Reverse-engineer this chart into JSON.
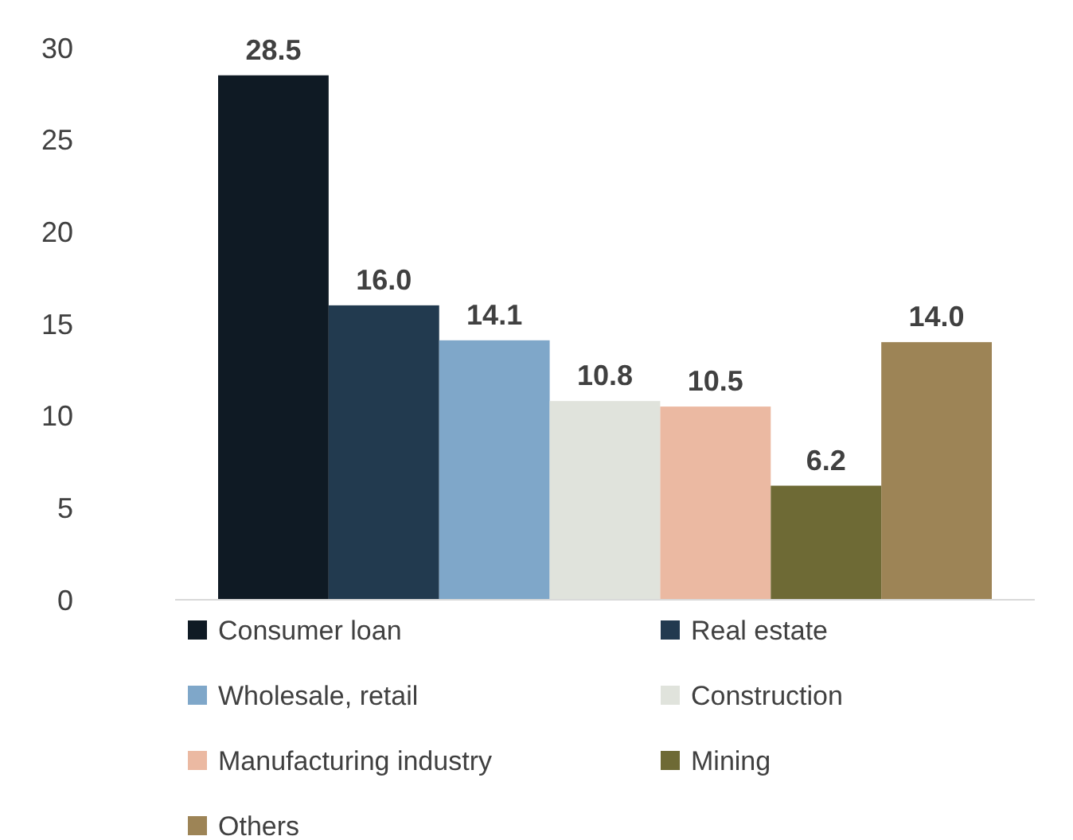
{
  "chart_data": {
    "type": "bar",
    "categories": [
      null
    ],
    "series": [
      {
        "name": "Consumer loan",
        "color": "#0f1a24",
        "values": [
          28.5
        ],
        "value_labels": [
          "28.5"
        ]
      },
      {
        "name": "Real estate",
        "color": "#223a4f",
        "values": [
          16.0
        ],
        "value_labels": [
          "16.0"
        ]
      },
      {
        "name": "Wholesale, retail",
        "color": "#7fa7c9",
        "values": [
          14.1
        ],
        "value_labels": [
          "14.1"
        ]
      },
      {
        "name": "Construction",
        "color": "#e0e3dc",
        "values": [
          10.8
        ],
        "value_labels": [
          "10.8"
        ]
      },
      {
        "name": "Manufacturing industry",
        "color": "#ebb9a2",
        "values": [
          10.5
        ],
        "value_labels": [
          "10.5"
        ]
      },
      {
        "name": "Mining",
        "color": "#6e6a35",
        "values": [
          6.2
        ],
        "value_labels": [
          "6.2"
        ]
      },
      {
        "name": "Others",
        "color": "#9d8456",
        "values": [
          14.0
        ],
        "value_labels": [
          "14.0"
        ]
      }
    ],
    "ylim": [
      0,
      30
    ],
    "yticks": [
      0,
      5,
      10,
      15,
      20,
      25,
      30
    ],
    "legend": "bottom"
  }
}
